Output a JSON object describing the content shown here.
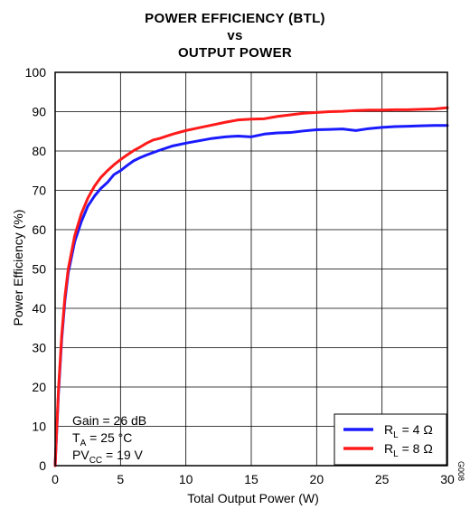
{
  "chart_data": {
    "type": "line",
    "title_lines": [
      "POWER EFFICIENCY (BTL)",
      "vs",
      "OUTPUT POWER"
    ],
    "xlabel": "Total Output Power (W)",
    "ylabel": "Power Efficiency (%)",
    "xlim": [
      0,
      30
    ],
    "ylim": [
      0,
      100
    ],
    "xticks": [
      0,
      5,
      10,
      15,
      20,
      25,
      30
    ],
    "yticks": [
      0,
      10,
      20,
      30,
      40,
      50,
      60,
      70,
      80,
      90,
      100
    ],
    "grid": true,
    "legend_position": "bottom-right",
    "conditions": {
      "gain": "Gain = 26 dB",
      "ta_prefix": "T",
      "ta_sub": "A",
      "ta_suffix": " = 25 °C",
      "pvcc_prefix": "PV",
      "pvcc_sub": "CC",
      "pvcc_suffix": " = 19 V"
    },
    "figure_id": "G008",
    "series": [
      {
        "name_prefix": "R",
        "name_sub": "L",
        "name_suffix": " = 4 Ω",
        "color": "#1a1aff",
        "x": [
          0,
          0.25,
          0.5,
          0.75,
          1,
          1.5,
          2,
          2.5,
          3,
          3.5,
          4,
          4.5,
          5,
          5.5,
          6,
          6.5,
          7,
          8,
          9,
          10,
          11,
          12,
          13,
          14,
          15,
          16,
          17,
          18,
          19,
          20,
          21,
          22,
          23,
          24,
          25,
          26,
          27,
          28,
          29,
          30
        ],
        "y": [
          0,
          18,
          32,
          42,
          49,
          57,
          62,
          66,
          68.5,
          70.5,
          72,
          74,
          75,
          76.3,
          77.5,
          78.3,
          79,
          80.2,
          81.3,
          82,
          82.6,
          83.2,
          83.6,
          83.8,
          83.6,
          84.3,
          84.6,
          84.7,
          85.1,
          85.4,
          85.5,
          85.6,
          85.2,
          85.7,
          86,
          86.2,
          86.3,
          86.4,
          86.5,
          86.5
        ]
      },
      {
        "name_prefix": "R",
        "name_sub": "L",
        "name_suffix": " = 8 Ω",
        "color": "#ff1a1a",
        "x": [
          0,
          0.25,
          0.5,
          0.75,
          1,
          1.5,
          2,
          2.5,
          3,
          3.5,
          4,
          4.5,
          5,
          5.5,
          6,
          6.5,
          7,
          7.5,
          8,
          9,
          10,
          11,
          12,
          13,
          14,
          15,
          16,
          17,
          18,
          19,
          20,
          21,
          22,
          23,
          24,
          25,
          26,
          27,
          28,
          29,
          30
        ],
        "y": [
          0,
          19,
          33,
          43,
          50,
          58.5,
          64,
          68,
          71,
          73.3,
          75,
          76.5,
          77.8,
          79,
          80.1,
          81,
          82,
          82.8,
          83.2,
          84.3,
          85.2,
          85.9,
          86.6,
          87.3,
          87.9,
          88.1,
          88.2,
          88.8,
          89.2,
          89.6,
          89.8,
          90,
          90.1,
          90.3,
          90.4,
          90.4,
          90.5,
          90.5,
          90.6,
          90.7,
          91
        ]
      }
    ]
  }
}
